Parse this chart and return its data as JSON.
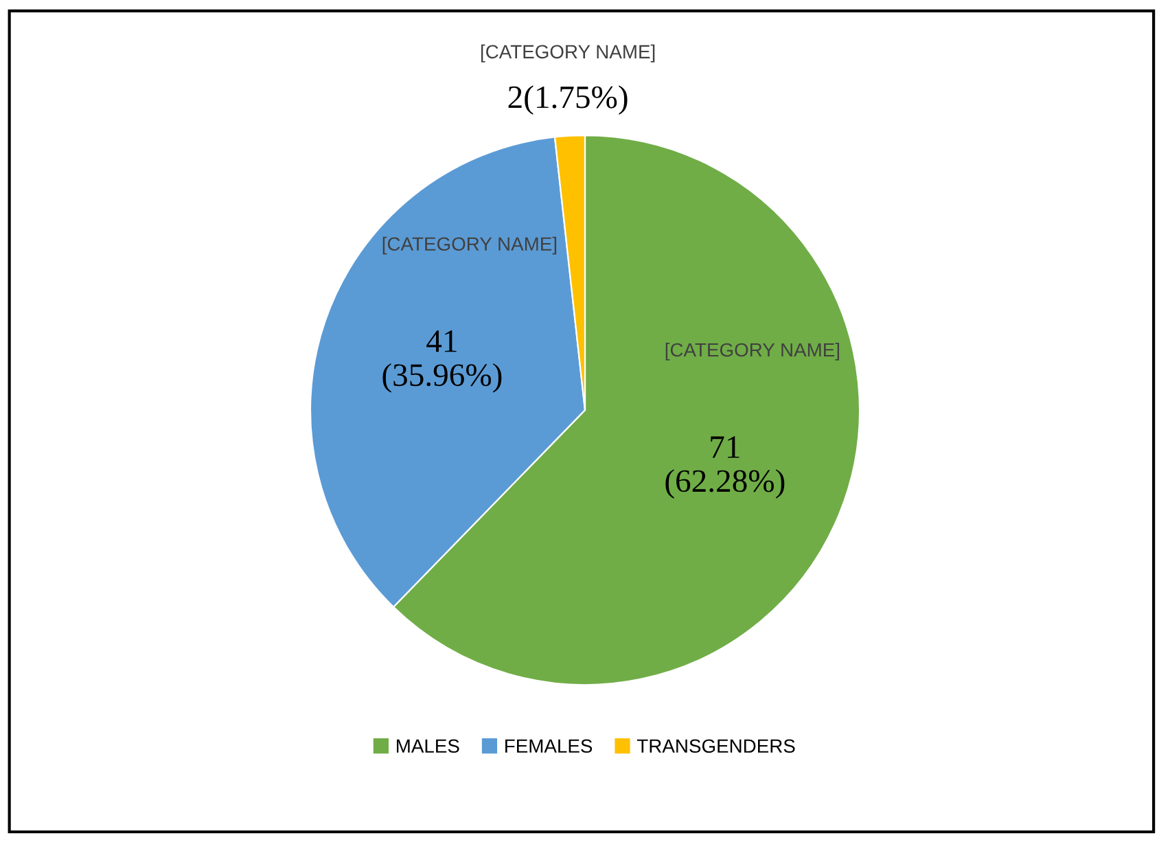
{
  "chart_data": {
    "type": "pie",
    "categories": [
      "MALES",
      "FEMALES",
      "TRANSGENDERS"
    ],
    "values": [
      71,
      41,
      2
    ],
    "colors": [
      "#70ad47",
      "#5b9bd5",
      "#ffc000"
    ],
    "value_labels": [
      "71\n(62.28%)",
      "41\n(35.96%)",
      "2(1.75%)"
    ],
    "annotations": [
      "[CATEGORY NAME]",
      "[CATEGORY NAME]",
      "[CATEGORY NAME]"
    ],
    "legend": "bottom"
  }
}
